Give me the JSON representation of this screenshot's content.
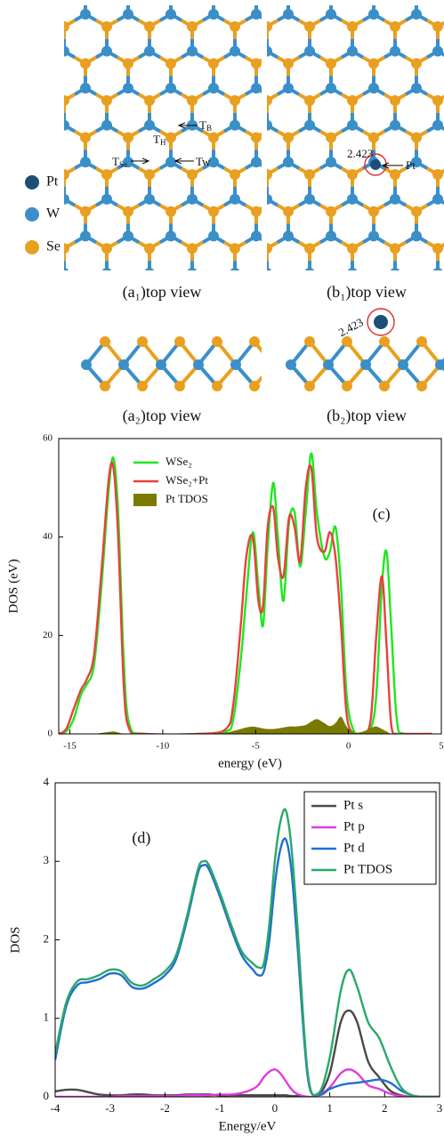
{
  "figure": {
    "atom_legend": [
      "Pt",
      "W",
      "Se"
    ],
    "sites": {
      "hollow": {
        "main": "T",
        "sub": "H"
      },
      "bridge": {
        "main": "T",
        "sub": "B"
      },
      "se_top": {
        "main": "T",
        "sub": "Se"
      },
      "w_top": "Tw"
    },
    "bond_lengths": [
      "2.423",
      "2.423"
    ],
    "adsorbate": "Pt",
    "captions": [
      "(a₁)top view",
      "(b₁)top view",
      "(a₂)top view",
      "(b₂)top view"
    ]
  },
  "chart_data": [
    {
      "type": "line",
      "annotation": "(c)",
      "x_label": "energy (eV)",
      "y_label": "DOS (eV)",
      "legend": "upper left",
      "xlim": [
        -15.6,
        5
      ],
      "ylim": [
        0,
        60
      ],
      "xticks": [
        -15,
        -10,
        -5,
        0,
        5
      ],
      "yticks": [
        0,
        20,
        40,
        60
      ],
      "x": [
        -15.6,
        -15.2,
        -14.8,
        -14.4,
        -14.1,
        -13.7,
        -13.3,
        -12.9,
        -12.65,
        -12.4,
        -12.1,
        -11.8,
        -11,
        -8,
        -6.6,
        -6.2,
        -5.8,
        -5.5,
        -5.15,
        -4.85,
        -4.6,
        -4.35,
        -4.05,
        -3.8,
        -3.5,
        -3.2,
        -2.9,
        -2.6,
        -2.3,
        -2.0,
        -1.7,
        -1.3,
        -1.0,
        -0.7,
        -0.4,
        -0.1,
        0.3,
        0.8,
        1.2,
        1.5,
        1.8,
        2.05,
        2.3,
        2.6,
        3.0,
        4.5
      ],
      "series": [
        {
          "name": "WSe₂",
          "color": "#1ee81e",
          "style": "line",
          "values": [
            0,
            0.5,
            3,
            8,
            10,
            14,
            30,
            50,
            56,
            45,
            15,
            2,
            0,
            0,
            0.5,
            3,
            15,
            28,
            41,
            30,
            22,
            38,
            51,
            40,
            27,
            43,
            45,
            34,
            45,
            57,
            45,
            36,
            37,
            42,
            30,
            8,
            0.5,
            0,
            1,
            8,
            30,
            37,
            22,
            3,
            0,
            0
          ]
        },
        {
          "name": "WSe₂+Pt",
          "color": "#e8413c",
          "style": "line",
          "values": [
            0,
            1,
            5,
            9,
            11,
            16,
            33,
            52,
            54,
            40,
            10,
            1,
            0,
            0,
            1,
            6,
            22,
            36,
            40,
            27,
            26,
            42,
            46,
            36,
            32,
            44,
            42,
            35,
            50,
            54,
            40,
            37,
            41,
            36,
            22,
            4,
            0,
            0,
            3,
            20,
            32,
            18,
            2,
            0,
            0,
            0
          ]
        },
        {
          "name": "Pt TDOS",
          "color": "#7a7a00",
          "style": "area",
          "values": [
            0,
            0,
            0,
            0,
            0,
            0,
            0.2,
            0.4,
            0.5,
            0.3,
            0,
            0,
            0,
            0,
            0.3,
            0.6,
            1,
            1.3,
            1.5,
            1.3,
            1.1,
            1,
            1,
            1.1,
            1.3,
            1.5,
            1.5,
            1.6,
            1.8,
            2.5,
            3,
            2.2,
            1.6,
            2.2,
            3.5,
            1.5,
            0.3,
            0.5,
            1.2,
            1.5,
            1,
            0.5,
            0,
            0,
            0,
            0
          ]
        }
      ]
    },
    {
      "type": "line",
      "annotation": "(d)",
      "x_label": "Energy/eV",
      "y_label": "DOS",
      "legend": "upper right",
      "xlim": [
        -4,
        3
      ],
      "ylim": [
        0,
        4
      ],
      "xticks": [
        -4,
        -3,
        -2,
        -1,
        0,
        1,
        2,
        3
      ],
      "yticks": [
        0,
        1,
        2,
        3,
        4
      ],
      "x": [
        -4,
        -3.8,
        -3.6,
        -3.4,
        -3.2,
        -3,
        -2.8,
        -2.6,
        -2.4,
        -2.2,
        -2,
        -1.8,
        -1.6,
        -1.4,
        -1.3,
        -1.2,
        -1,
        -0.8,
        -0.6,
        -0.4,
        -0.3,
        -0.2,
        -0.1,
        0,
        0.1,
        0.2,
        0.3,
        0.4,
        0.6,
        0.8,
        1,
        1.2,
        1.35,
        1.5,
        1.7,
        1.9,
        2.1,
        2.3,
        2.5,
        2.7,
        3
      ],
      "series": [
        {
          "name": "Pt s",
          "color": "#4a4a4a",
          "style": "line",
          "values": [
            0.07,
            0.09,
            0.09,
            0.06,
            0.03,
            0.02,
            0.02,
            0.03,
            0.03,
            0.02,
            0.02,
            0.02,
            0.03,
            0.03,
            0.03,
            0.03,
            0.02,
            0.02,
            0.02,
            0.02,
            0.02,
            0.02,
            0.02,
            0.02,
            0.02,
            0.02,
            0.01,
            0.01,
            0,
            0.02,
            0.3,
            0.95,
            1.1,
            0.95,
            0.45,
            0.25,
            0.08,
            0.02,
            0,
            0,
            0
          ]
        },
        {
          "name": "Pt p",
          "color": "#e03ce0",
          "style": "line",
          "values": [
            0,
            0,
            0,
            0,
            0,
            0,
            0.01,
            0.01,
            0.01,
            0.01,
            0.01,
            0.01,
            0.02,
            0.02,
            0.02,
            0.02,
            0.03,
            0.03,
            0.05,
            0.1,
            0.15,
            0.25,
            0.32,
            0.35,
            0.3,
            0.2,
            0.1,
            0.04,
            0,
            0.02,
            0.12,
            0.3,
            0.35,
            0.3,
            0.15,
            0.1,
            0.04,
            0.01,
            0,
            0,
            0
          ]
        },
        {
          "name": "Pt d",
          "color": "#1f6fd1",
          "style": "line",
          "values": [
            0.47,
            1.15,
            1.42,
            1.46,
            1.5,
            1.57,
            1.55,
            1.4,
            1.38,
            1.45,
            1.55,
            1.75,
            2.25,
            2.85,
            2.95,
            2.9,
            2.55,
            2.15,
            1.8,
            1.62,
            1.55,
            1.6,
            2.0,
            2.7,
            3.15,
            3.28,
            2.9,
            2.05,
            0.25,
            0.03,
            0.1,
            0.15,
            0.17,
            0.18,
            0.2,
            0.22,
            0.18,
            0.08,
            0.02,
            0,
            0
          ]
        },
        {
          "name": "Pt TDOS",
          "color": "#2aa86a",
          "style": "line",
          "values": [
            0.55,
            1.2,
            1.47,
            1.5,
            1.55,
            1.62,
            1.6,
            1.45,
            1.42,
            1.5,
            1.6,
            1.8,
            2.3,
            2.9,
            3.0,
            2.95,
            2.6,
            2.2,
            1.85,
            1.7,
            1.65,
            1.7,
            2.2,
            3.0,
            3.5,
            3.65,
            3.2,
            2.3,
            0.3,
            0.05,
            0.5,
            1.35,
            1.62,
            1.4,
            0.95,
            0.75,
            0.4,
            0.12,
            0.02,
            0,
            0
          ]
        }
      ]
    }
  ]
}
